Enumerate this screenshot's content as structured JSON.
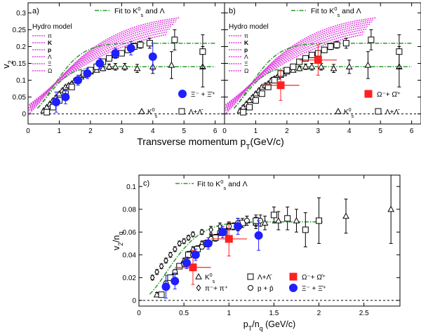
{
  "colors": {
    "xi": "#1f1fff",
    "omega": "#ff2020",
    "fit": "#2a9d2a",
    "hydro": "#e040e0",
    "black": "#000000"
  },
  "chart_data": [
    {
      "panel_label": "a)",
      "type": "scatter",
      "xlabel": "Transverse momentum p",
      "xlabel_sub": "T",
      "xlabel_unit": "(GeV/c)",
      "ylabel": "v",
      "ylabel_sub": "2",
      "xlim": [
        0,
        6.3
      ],
      "ylim": [
        -0.03,
        0.33
      ],
      "xticks": [
        0,
        1,
        2,
        3,
        4,
        5,
        6
      ],
      "yticks": [
        0,
        0.05,
        0.1,
        0.15,
        0.2,
        0.25,
        0.3
      ],
      "ytick_labels": [
        "0",
        "0.05",
        "0.1",
        "0.15",
        "0.2",
        "0.25",
        "0.3"
      ],
      "fit_legend": "Fit to K",
      "fit_legend_sup": "0",
      "fit_legend_sub": "s",
      "fit_legend_tail": " and Λ",
      "fit_lines": [
        {
          "plateau": 0.14,
          "x_range": [
            0.3,
            6.0
          ]
        },
        {
          "plateau": 0.21,
          "x_range": [
            0.3,
            6.0
          ]
        }
      ],
      "hydro_title": "Hydro model",
      "hydro_species": [
        "π",
        "K",
        "p",
        "Λ",
        "Ξ",
        "Ω"
      ],
      "series": [
        {
          "name": "K_s^0",
          "marker": "triangle",
          "color": "black",
          "x": [
            0.5,
            0.6,
            0.7,
            0.8,
            0.9,
            1.0,
            1.1,
            1.2,
            1.3,
            1.4,
            1.5,
            1.6,
            1.7,
            1.8,
            1.9,
            2.0,
            2.2,
            2.4,
            2.6,
            2.8,
            3.1,
            3.5,
            4.0,
            4.6,
            5.6
          ],
          "y": [
            0.01,
            0.02,
            0.03,
            0.04,
            0.05,
            0.06,
            0.07,
            0.08,
            0.085,
            0.09,
            0.1,
            0.105,
            0.11,
            0.115,
            0.12,
            0.125,
            0.13,
            0.135,
            0.14,
            0.14,
            0.14,
            0.135,
            0.14,
            0.145,
            0.14
          ],
          "err": [
            0.004,
            0.004,
            0.004,
            0.004,
            0.004,
            0.004,
            0.004,
            0.004,
            0.004,
            0.004,
            0.005,
            0.005,
            0.005,
            0.006,
            0.006,
            0.006,
            0.006,
            0.007,
            0.008,
            0.01,
            0.01,
            0.012,
            0.02,
            0.04,
            0.06
          ]
        },
        {
          "name": "Λ+Λ̄",
          "marker": "square",
          "color": "black",
          "x": [
            0.6,
            0.8,
            1.0,
            1.2,
            1.4,
            1.6,
            1.8,
            2.0,
            2.2,
            2.4,
            2.6,
            2.8,
            3.0,
            3.2,
            3.4,
            3.6,
            3.9,
            4.7,
            5.6
          ],
          "y": [
            0.005,
            0.02,
            0.04,
            0.06,
            0.08,
            0.1,
            0.12,
            0.13,
            0.14,
            0.155,
            0.165,
            0.175,
            0.18,
            0.19,
            0.2,
            0.205,
            0.21,
            0.22,
            0.185
          ],
          "err": [
            0.004,
            0.004,
            0.004,
            0.004,
            0.005,
            0.005,
            0.005,
            0.005,
            0.005,
            0.006,
            0.006,
            0.007,
            0.007,
            0.008,
            0.009,
            0.01,
            0.015,
            0.03,
            0.05
          ]
        },
        {
          "name": "Ξ⁻+Ξ̄⁺",
          "marker": "circle",
          "color": "xi",
          "x": [
            0.9,
            1.2,
            1.6,
            1.9,
            2.3,
            2.8,
            3.3,
            4.0
          ],
          "y": [
            0.035,
            0.05,
            0.1,
            0.12,
            0.15,
            0.18,
            0.195,
            0.17
          ],
          "err": [
            0.03,
            0.02,
            0.015,
            0.015,
            0.015,
            0.015,
            0.02,
            0.04
          ],
          "legend": "Ξ⁻+Ξ̄⁺"
        }
      ],
      "legend_entries": [
        "K",
        "Λ+Λ̄",
        "Ξ⁻ + Ξ̄⁺"
      ]
    },
    {
      "panel_label": "b)",
      "type": "scatter",
      "xlim": [
        0,
        6.3
      ],
      "ylim": [
        -0.03,
        0.33
      ],
      "xticks": [
        0,
        1,
        2,
        3,
        4,
        5,
        6
      ],
      "fit_lines": [
        {
          "plateau": 0.14,
          "x_range": [
            0.3,
            6.0
          ]
        },
        {
          "plateau": 0.21,
          "x_range": [
            0.3,
            6.0
          ]
        }
      ],
      "hydro_title": "Hydro model",
      "hydro_species": [
        "π",
        "K",
        "p",
        "Λ",
        "Ξ",
        "Ω"
      ],
      "series": [
        {
          "name": "Ω⁻+Ω̄⁺",
          "marker": "square-filled",
          "color": "omega",
          "x": [
            1.8,
            3.0
          ],
          "y": [
            0.085,
            0.16
          ],
          "err": [
            0.045,
            0.045
          ],
          "xerr": [
            0.6,
            0.6
          ]
        }
      ],
      "legend_entries": [
        "Ω⁻+ Ω̄⁺",
        "K",
        "Λ+Λ̄"
      ]
    },
    {
      "panel_label": "c)",
      "type": "scatter",
      "xlabel": "p",
      "xlabel_sub": "T",
      "xlabel_mid": "/n",
      "xlabel_sub2": "q",
      "xlabel_unit": " (GeV/c)",
      "ylabel": "v",
      "ylabel_sub": "2",
      "ylabel_mid": "/n",
      "ylabel_sub2": "q",
      "xlim": [
        0,
        2.9
      ],
      "ylim": [
        -0.005,
        0.11
      ],
      "xticks": [
        0,
        0.5,
        1,
        1.5,
        2,
        2.5
      ],
      "xtick_labels": [
        "0",
        "0.5",
        "1",
        "1.5",
        "2",
        "2.5"
      ],
      "yticks": [
        0,
        0.02,
        0.04,
        0.06,
        0.08,
        0.1
      ],
      "ytick_labels": [
        "0",
        "0.02",
        "0.04",
        "0.06",
        "0.08",
        "0.1"
      ],
      "fit_plateau": 0.069,
      "series": [
        {
          "name": "K_s^0",
          "marker": "triangle",
          "x": [
            0.2,
            0.3,
            0.4,
            0.5,
            0.6,
            0.7,
            0.8,
            0.9,
            1.0,
            1.1,
            1.2,
            1.3,
            1.4,
            1.55,
            1.75,
            2.3,
            2.8
          ],
          "y": [
            0.005,
            0.015,
            0.025,
            0.035,
            0.045,
            0.05,
            0.055,
            0.06,
            0.065,
            0.065,
            0.07,
            0.068,
            0.068,
            0.07,
            0.07,
            0.074,
            0.08
          ],
          "err": [
            0.002,
            0.002,
            0.002,
            0.002,
            0.002,
            0.002,
            0.003,
            0.003,
            0.003,
            0.004,
            0.004,
            0.005,
            0.006,
            0.008,
            0.01,
            0.015,
            0.03
          ]
        },
        {
          "name": "π⁻+π⁺",
          "marker": "diamond",
          "x": [
            0.15,
            0.2,
            0.25,
            0.3,
            0.35,
            0.4,
            0.45,
            0.5,
            0.55,
            0.6,
            0.7,
            0.8,
            0.9,
            1.0,
            1.1,
            1.2
          ],
          "y": [
            0.02,
            0.025,
            0.03,
            0.035,
            0.04,
            0.045,
            0.05,
            0.052,
            0.055,
            0.058,
            0.06,
            0.062,
            0.065,
            0.066,
            0.068,
            0.07
          ],
          "err": [
            0.002,
            0.002,
            0.002,
            0.002,
            0.002,
            0.002,
            0.002,
            0.002,
            0.002,
            0.002,
            0.002,
            0.003,
            0.003,
            0.003,
            0.004,
            0.004
          ]
        },
        {
          "name": "Λ+Λ̄",
          "marker": "square",
          "x": [
            0.25,
            0.35,
            0.45,
            0.55,
            0.65,
            0.75,
            0.85,
            0.95,
            1.05,
            1.15,
            1.3,
            1.5,
            1.65,
            1.85,
            2.0
          ],
          "y": [
            0.005,
            0.02,
            0.03,
            0.04,
            0.045,
            0.05,
            0.055,
            0.06,
            0.065,
            0.068,
            0.07,
            0.075,
            0.072,
            0.062,
            0.07
          ],
          "err": [
            0.002,
            0.002,
            0.002,
            0.003,
            0.003,
            0.003,
            0.003,
            0.003,
            0.003,
            0.004,
            0.005,
            0.007,
            0.01,
            0.015,
            0.02
          ]
        },
        {
          "name": "p+p̄",
          "marker": "circle-open",
          "x": [
            0.3,
            0.4,
            0.5,
            0.6,
            0.7,
            0.8,
            0.9,
            1.0,
            1.1,
            1.2,
            1.35
          ],
          "y": [
            0.015,
            0.025,
            0.032,
            0.04,
            0.047,
            0.054,
            0.06,
            0.065,
            0.068,
            0.07,
            0.07
          ],
          "err": [
            0.002,
            0.002,
            0.002,
            0.002,
            0.002,
            0.003,
            0.003,
            0.003,
            0.004,
            0.004,
            0.005
          ]
        },
        {
          "name": "Ω⁻+Ω̄⁺",
          "marker": "square-filled",
          "x": [
            0.6,
            1.0
          ],
          "y": [
            0.029,
            0.054
          ],
          "err": [
            0.015,
            0.015
          ],
          "xerr": [
            0.2,
            0.2
          ]
        },
        {
          "name": "Ξ⁻+Ξ̄⁺",
          "marker": "circle",
          "x": [
            0.3,
            0.4,
            0.53,
            0.63,
            0.77,
            0.93,
            1.1,
            1.33
          ],
          "y": [
            0.012,
            0.017,
            0.033,
            0.04,
            0.05,
            0.06,
            0.065,
            0.057
          ],
          "err": [
            0.01,
            0.007,
            0.005,
            0.005,
            0.005,
            0.005,
            0.007,
            0.013
          ]
        }
      ],
      "fit_legend": "Fit to K",
      "fit_legend_sup": "0",
      "fit_legend_sub": "s",
      "fit_legend_tail": " and Λ",
      "legend": {
        "k": "K",
        "lambda": "Λ+Λ̄",
        "omega": "Ω⁻+ Ω̄⁺",
        "pi": "π⁻+ π⁺",
        "p": "p + p̄",
        "xi": "Ξ⁻ + Ξ̄⁺"
      }
    }
  ]
}
